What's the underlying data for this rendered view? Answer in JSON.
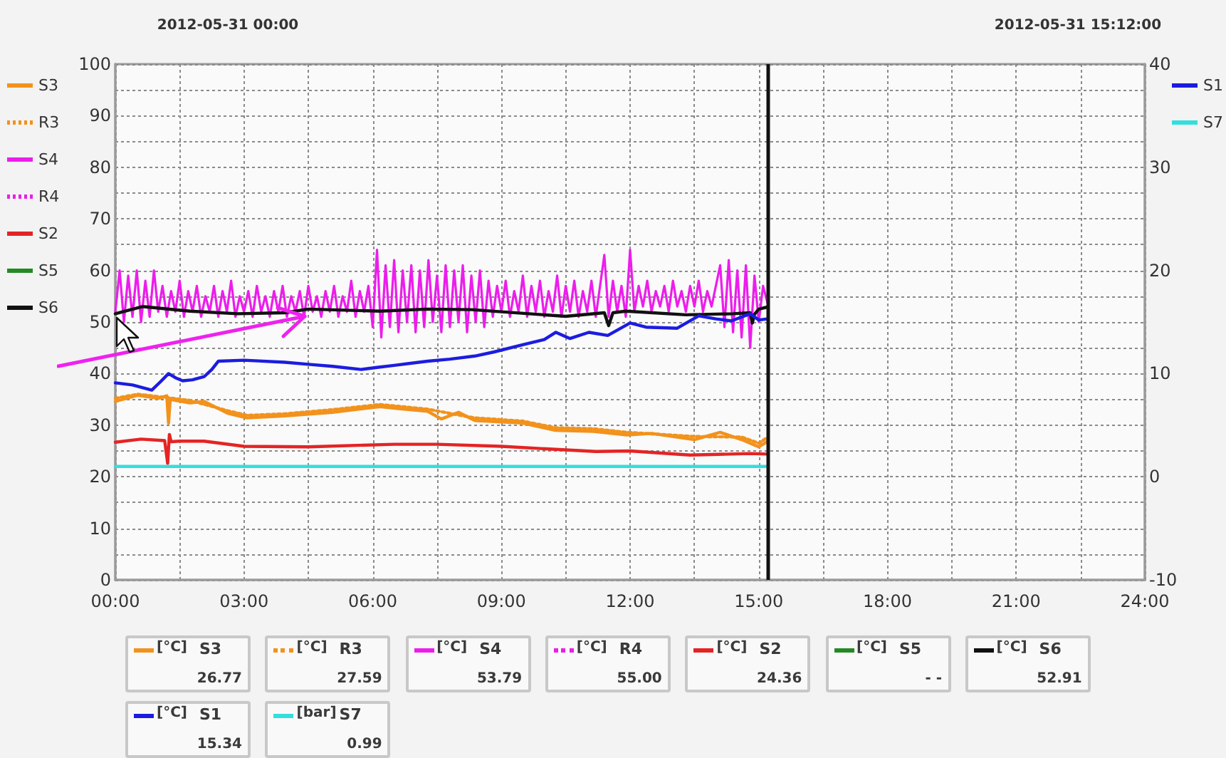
{
  "chart_data": {
    "type": "line",
    "annotations": [
      "2012-05-31 00:00",
      "2012-05-31 15:12:00",
      "[°C]",
      "26.77",
      "[°C]",
      "27.59",
      "[°C]",
      "53.79",
      "[°C]",
      "55.00",
      "[°C]",
      "24.36",
      "[°C]",
      "- -",
      "[°C]",
      "52.91",
      "[°C]",
      "15.34",
      "[bar]",
      "0.99"
    ],
    "xlim": [
      0,
      24
    ],
    "xticks": [
      {
        "value": 0,
        "label": "00:00"
      },
      {
        "value": 1.5,
        "label": null
      },
      {
        "value": 3,
        "label": "03:00"
      },
      {
        "value": 4.5,
        "label": null
      },
      {
        "value": 6,
        "label": "06:00"
      },
      {
        "value": 7.5,
        "label": null
      },
      {
        "value": 9,
        "label": "09:00"
      },
      {
        "value": 10.5,
        "label": null
      },
      {
        "value": 12,
        "label": "12:00"
      },
      {
        "value": 13.5,
        "label": null
      },
      {
        "value": 15,
        "label": "15:00"
      },
      {
        "value": 16.5,
        "label": null
      },
      {
        "value": 18,
        "label": "18:00"
      },
      {
        "value": 19.5,
        "label": null
      },
      {
        "value": 21,
        "label": "21:00"
      },
      {
        "value": 22.5,
        "label": null
      },
      {
        "value": 24,
        "label": "24:00"
      }
    ],
    "ylim": [
      0,
      100
    ],
    "yticks": [
      0,
      {
        "value": 5,
        "label": null
      },
      10,
      {
        "value": 15,
        "label": null
      },
      20,
      {
        "value": 25,
        "label": null
      },
      30,
      {
        "value": 35,
        "label": null
      },
      40,
      {
        "value": 45,
        "label": null
      },
      50,
      {
        "value": 55,
        "label": null
      },
      60,
      {
        "value": 65,
        "label": null
      },
      70,
      {
        "value": 75,
        "label": null
      },
      80,
      {
        "value": 85,
        "label": null
      },
      90,
      {
        "value": 95,
        "label": null
      },
      100
    ],
    "y2lim": [
      -10,
      40
    ],
    "y2ticks": [
      -10,
      0,
      10,
      20,
      30,
      40
    ],
    "grid": true,
    "legend": "left",
    "ref_lines": [
      {
        "axis": "x",
        "value": 15.2,
        "color": "#111111"
      }
    ],
    "series": [
      {
        "name": "S3",
        "color": "#f2921c",
        "x": [
          0,
          0.52,
          1.0,
          1.2,
          1.24,
          1.28,
          1.74,
          2.07,
          2.62,
          3.07,
          3.95,
          5.06,
          6.17,
          6.6,
          7.28,
          7.6,
          8.0,
          8.38,
          9.49,
          10.26,
          11.15,
          11.93,
          12.5,
          13.5,
          14.1,
          14.6,
          15.0,
          15.2
        ],
        "values": [
          34.6,
          35.8,
          35.2,
          35.7,
          30.4,
          35.0,
          34.3,
          34.6,
          32.3,
          31.4,
          31.8,
          32.5,
          33.6,
          33.2,
          32.7,
          31.2,
          32.5,
          30.9,
          30.4,
          29.0,
          28.8,
          28.1,
          28.4,
          27.2,
          28.6,
          27.2,
          25.8,
          26.8
        ]
      },
      {
        "name": "R3",
        "color": "#f2921c",
        "line_style": "dotted",
        "x": [
          0,
          0.52,
          1.74,
          2.62,
          3.07,
          3.95,
          5.06,
          6.17,
          7.28,
          8.38,
          9.49,
          10.26,
          11.15,
          11.93,
          13.5,
          14.6,
          15.0,
          15.2
        ],
        "values": [
          35.2,
          36.0,
          34.8,
          32.8,
          31.9,
          32.2,
          33.0,
          34.0,
          33.1,
          31.4,
          30.8,
          29.5,
          29.3,
          28.6,
          27.8,
          27.7,
          26.5,
          27.6
        ]
      },
      {
        "name": "S4",
        "color": "#ec1dec",
        "x": [
          0,
          0.1,
          0.2,
          0.3,
          0.4,
          0.5,
          0.6,
          0.7,
          0.8,
          0.9,
          1,
          1.1,
          1.2,
          1.3,
          1.4,
          1.5,
          1.6,
          1.7,
          1.8,
          1.9,
          2,
          2.1,
          2.2,
          2.3,
          2.4,
          2.5,
          2.6,
          2.7,
          2.8,
          2.9,
          3,
          3.1,
          3.2,
          3.3,
          3.4,
          3.5,
          3.6,
          3.7,
          3.8,
          3.9,
          4,
          4.1,
          4.2,
          4.3,
          4.4,
          4.5,
          4.6,
          4.7,
          4.8,
          4.9,
          5,
          5.1,
          5.2,
          5.3,
          5.4,
          5.5,
          5.6,
          5.7,
          5.8,
          5.9,
          6,
          6.1,
          6.2,
          6.3,
          6.4,
          6.5,
          6.6,
          6.7,
          6.8,
          6.9,
          7,
          7.1,
          7.2,
          7.3,
          7.4,
          7.5,
          7.6,
          7.7,
          7.8,
          7.9,
          8,
          8.1,
          8.2,
          8.3,
          8.4,
          8.5,
          8.6,
          8.7,
          8.8,
          8.9,
          9,
          9.1,
          9.2,
          9.3,
          9.4,
          9.5,
          9.6,
          9.7,
          9.8,
          9.9,
          10,
          10.1,
          10.2,
          10.3,
          10.4,
          10.5,
          10.6,
          10.7,
          10.8,
          10.9,
          11,
          11.1,
          11.2,
          11.3,
          11.4,
          11.5,
          11.6,
          11.7,
          11.8,
          11.9,
          12,
          12.1,
          12.2,
          12.3,
          12.4,
          12.5,
          12.6,
          12.7,
          12.8,
          12.9,
          13,
          13.1,
          13.2,
          13.3,
          13.4,
          13.5,
          13.6,
          13.7,
          13.8,
          13.9,
          14,
          14.1,
          14.2,
          14.3,
          14.4,
          14.5,
          14.6,
          14.7,
          14.8,
          14.9,
          15,
          15.1,
          15.2
        ],
        "values": [
          52,
          60,
          50,
          59,
          51,
          60,
          50,
          58,
          51,
          60,
          52,
          57,
          51,
          56,
          52,
          58,
          51,
          56,
          52,
          57,
          51,
          55,
          52,
          57,
          51,
          56,
          52,
          58,
          51,
          55,
          52,
          56,
          51,
          57,
          52,
          55,
          51,
          56,
          52,
          57,
          51,
          55,
          52,
          56,
          51,
          57,
          52,
          55,
          51,
          56,
          52,
          57,
          51,
          55,
          52,
          58,
          51,
          56,
          52,
          57,
          49,
          64,
          47,
          61,
          49,
          62,
          48,
          60,
          50,
          61,
          48,
          60,
          49,
          62,
          50,
          59,
          48,
          61,
          49,
          60,
          50,
          61,
          48,
          59,
          50,
          60,
          49,
          58,
          51,
          57,
          52,
          58,
          51,
          56,
          52,
          59,
          51,
          57,
          52,
          58,
          51,
          56,
          52,
          59,
          51,
          57,
          52,
          58,
          51,
          56,
          52,
          58,
          51,
          57,
          63,
          51,
          58,
          52,
          57,
          51,
          64,
          52,
          57,
          53,
          58,
          52,
          56,
          53,
          57,
          52,
          58,
          53,
          56,
          52,
          57,
          53,
          58,
          52,
          56,
          53,
          57,
          61,
          49,
          62,
          48,
          60,
          47,
          61,
          45,
          59,
          50,
          57,
          53.8
        ]
      },
      {
        "name": "R4",
        "color": "#ec1dec",
        "line_style": "dotted"
      },
      {
        "name": "S2",
        "color": "#e42424",
        "x": [
          0,
          0.6,
          1.15,
          1.22,
          1.26,
          1.3,
          1.5,
          2.07,
          3.0,
          4.5,
          6.5,
          7.5,
          9.0,
          10.5,
          11.2,
          12.0,
          13.4,
          14.8,
          15.2
        ],
        "values": [
          26.7,
          27.3,
          27.0,
          22.6,
          28.2,
          26.8,
          26.9,
          26.9,
          25.9,
          25.8,
          26.3,
          26.3,
          25.9,
          25.2,
          24.9,
          25.0,
          24.2,
          24.5,
          24.4
        ]
      },
      {
        "name": "S5",
        "color": "#238a23"
      },
      {
        "name": "S6",
        "color": "#111111",
        "x": [
          0,
          0.63,
          1.74,
          2.85,
          3.95,
          4.5,
          6.17,
          7.28,
          8.3,
          10.5,
          11.4,
          11.5,
          11.6,
          11.9,
          13.3,
          14.4,
          14.8,
          14.85,
          14.9,
          15.0,
          15.2
        ],
        "values": [
          51.6,
          53.0,
          52.1,
          51.6,
          51.8,
          52.5,
          52.1,
          52.5,
          52.4,
          51.1,
          51.8,
          49.3,
          51.8,
          52.1,
          51.4,
          51.6,
          51.8,
          49.8,
          51.5,
          52.5,
          52.9
        ]
      },
      {
        "name": "S1",
        "color": "#1c1ce0",
        "axis": "y2",
        "x": [
          0,
          0.4,
          0.85,
          1.05,
          1.24,
          1.4,
          1.57,
          1.8,
          2.07,
          2.25,
          2.4,
          3.0,
          3.95,
          4.5,
          5.07,
          5.73,
          6.1,
          6.5,
          7.28,
          7.8,
          8.38,
          8.83,
          9.5,
          10.0,
          10.27,
          10.6,
          11.04,
          11.48,
          12.0,
          12.37,
          13.1,
          13.6,
          14.0,
          14.36,
          14.8,
          15.0,
          15.2
        ],
        "values": [
          9.1,
          8.9,
          8.4,
          9.2,
          10.0,
          9.6,
          9.3,
          9.4,
          9.7,
          10.4,
          11.2,
          11.3,
          11.1,
          10.9,
          10.7,
          10.4,
          10.6,
          10.8,
          11.2,
          11.4,
          11.7,
          12.1,
          12.8,
          13.3,
          14.0,
          13.4,
          14.0,
          13.7,
          14.9,
          14.5,
          14.4,
          15.6,
          15.3,
          15.1,
          15.8,
          15.2,
          15.3
        ]
      },
      {
        "name": "S7",
        "color": "#33dede",
        "axis": "y2",
        "x": [
          0,
          15.2
        ],
        "values": [
          1.0,
          1.0
        ]
      }
    ]
  }
}
